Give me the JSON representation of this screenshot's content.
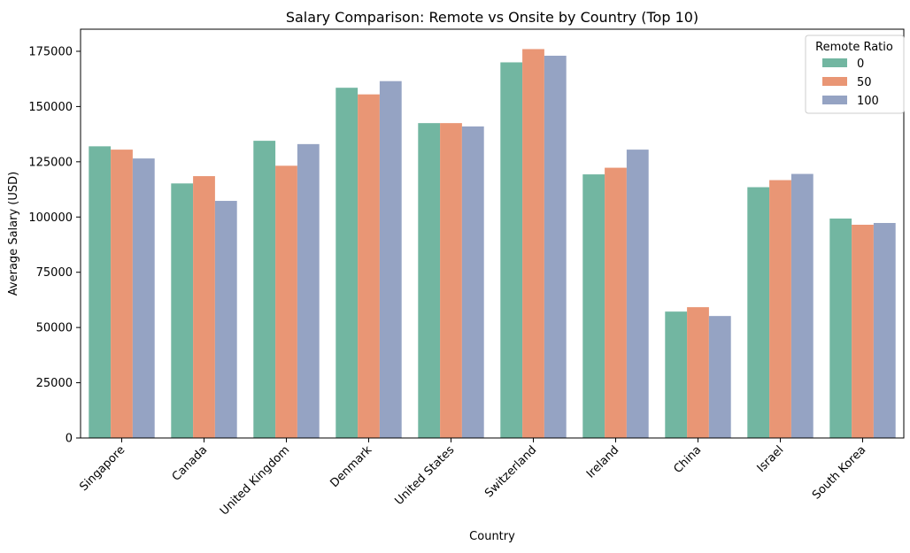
{
  "chart_data": {
    "type": "bar",
    "title": "Salary Comparison: Remote vs Onsite by Country (Top 10)",
    "xlabel": "Country",
    "ylabel": "Average Salary (USD)",
    "ylim": [
      0,
      185000
    ],
    "yticks": [
      0,
      25000,
      50000,
      75000,
      100000,
      125000,
      150000,
      175000
    ],
    "grid": false,
    "categories": [
      "Singapore",
      "Canada",
      "United Kingdom",
      "Denmark",
      "United States",
      "Switzerland",
      "Ireland",
      "China",
      "Israel",
      "South Korea"
    ],
    "legend": {
      "title": "Remote Ratio",
      "placement": "top-right"
    },
    "series": [
      {
        "name": "0",
        "color": "#72b6a1",
        "values": [
          132000,
          115200,
          134500,
          158500,
          142500,
          170000,
          119300,
          57200,
          113500,
          99300
        ]
      },
      {
        "name": "50",
        "color": "#e99675",
        "values": [
          130500,
          118500,
          123200,
          155500,
          142500,
          176000,
          122300,
          59200,
          116700,
          96500
        ]
      },
      {
        "name": "100",
        "color": "#95a3c3",
        "values": [
          126500,
          107300,
          133000,
          161500,
          141000,
          173000,
          130500,
          55200,
          119500,
          97300
        ]
      }
    ]
  }
}
